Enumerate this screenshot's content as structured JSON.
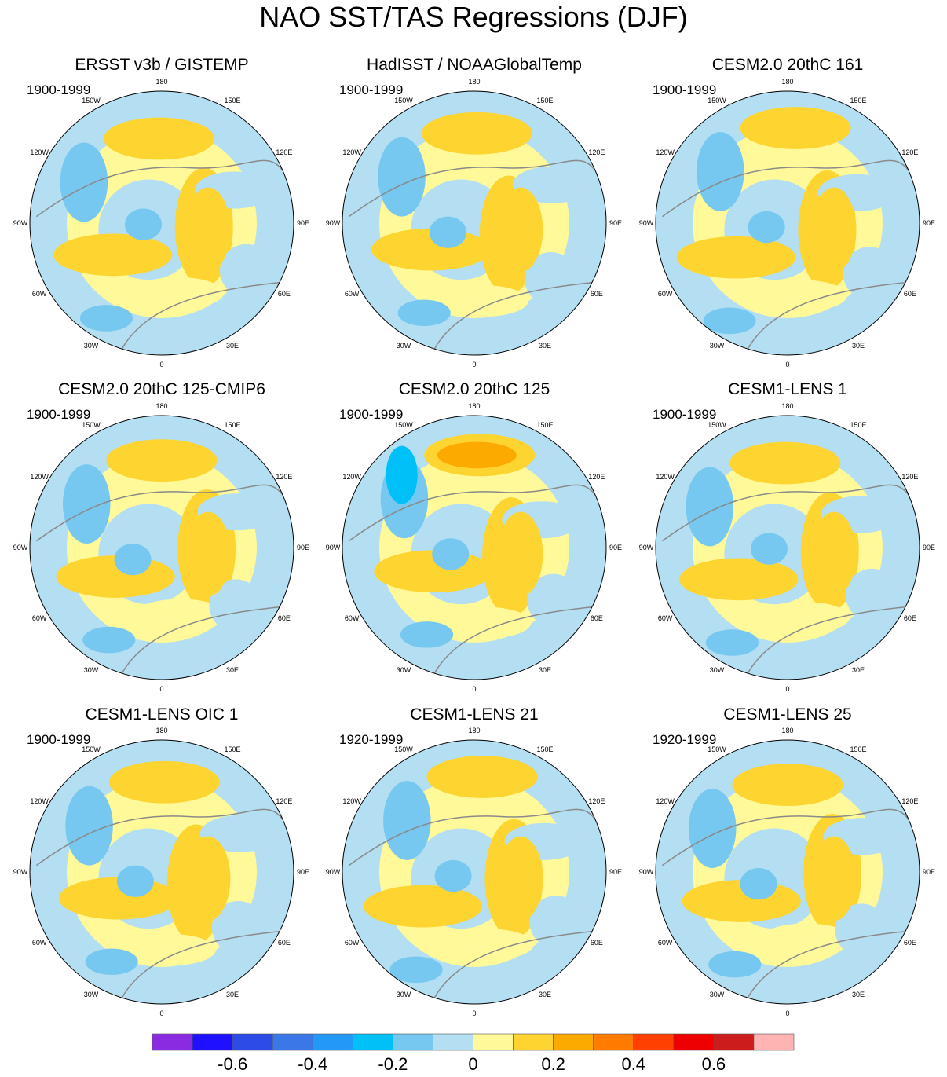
{
  "title": "NAO SST/TAS Regressions (DJF)",
  "chart_data": {
    "type": "heatmap",
    "projection": "north-polar-stereographic",
    "variable": "NAO SST/TAS regression",
    "season": "DJF",
    "longitude_labels": [
      "180",
      "150E",
      "120E",
      "90E",
      "60E",
      "30E",
      "0",
      "30W",
      "60W",
      "90W",
      "120W",
      "150W"
    ],
    "panels": [
      {
        "title": "ERSST v3b / GISTEMP",
        "period": "1900-1999"
      },
      {
        "title": "HadISST / NOAAGlobalTemp",
        "period": "1900-1999"
      },
      {
        "title": "CESM2.0 20thC 161",
        "period": "1900-1999"
      },
      {
        "title": "CESM2.0 20thC 125-CMIP6",
        "period": "1900-1999"
      },
      {
        "title": "CESM2.0 20thC 125",
        "period": "1900-1999"
      },
      {
        "title": "CESM1-LENS 1",
        "period": "1900-1999"
      },
      {
        "title": "CESM1-LENS OIC 1",
        "period": "1900-1999"
      },
      {
        "title": "CESM1-LENS 21",
        "period": "1920-1999"
      },
      {
        "title": "CESM1-LENS 25",
        "period": "1920-1999"
      }
    ],
    "colorbar": {
      "colors": [
        "#8a2be2",
        "#1f10ff",
        "#2d4be6",
        "#3a78e8",
        "#2398f6",
        "#00c0f8",
        "#76c8f0",
        "#b4def2",
        "#fff99a",
        "#fed430",
        "#fdaa00",
        "#ff7c00",
        "#ff4000",
        "#ee0000",
        "#cc1c1c",
        "#ffb4b4"
      ],
      "tick_values": [
        -0.6,
        -0.4,
        -0.2,
        0,
        0.2,
        0.4,
        0.6
      ],
      "tick_labels": [
        "-0.6",
        "-0.4",
        "-0.2",
        "0",
        "0.2",
        "0.4",
        "0.6"
      ]
    }
  }
}
